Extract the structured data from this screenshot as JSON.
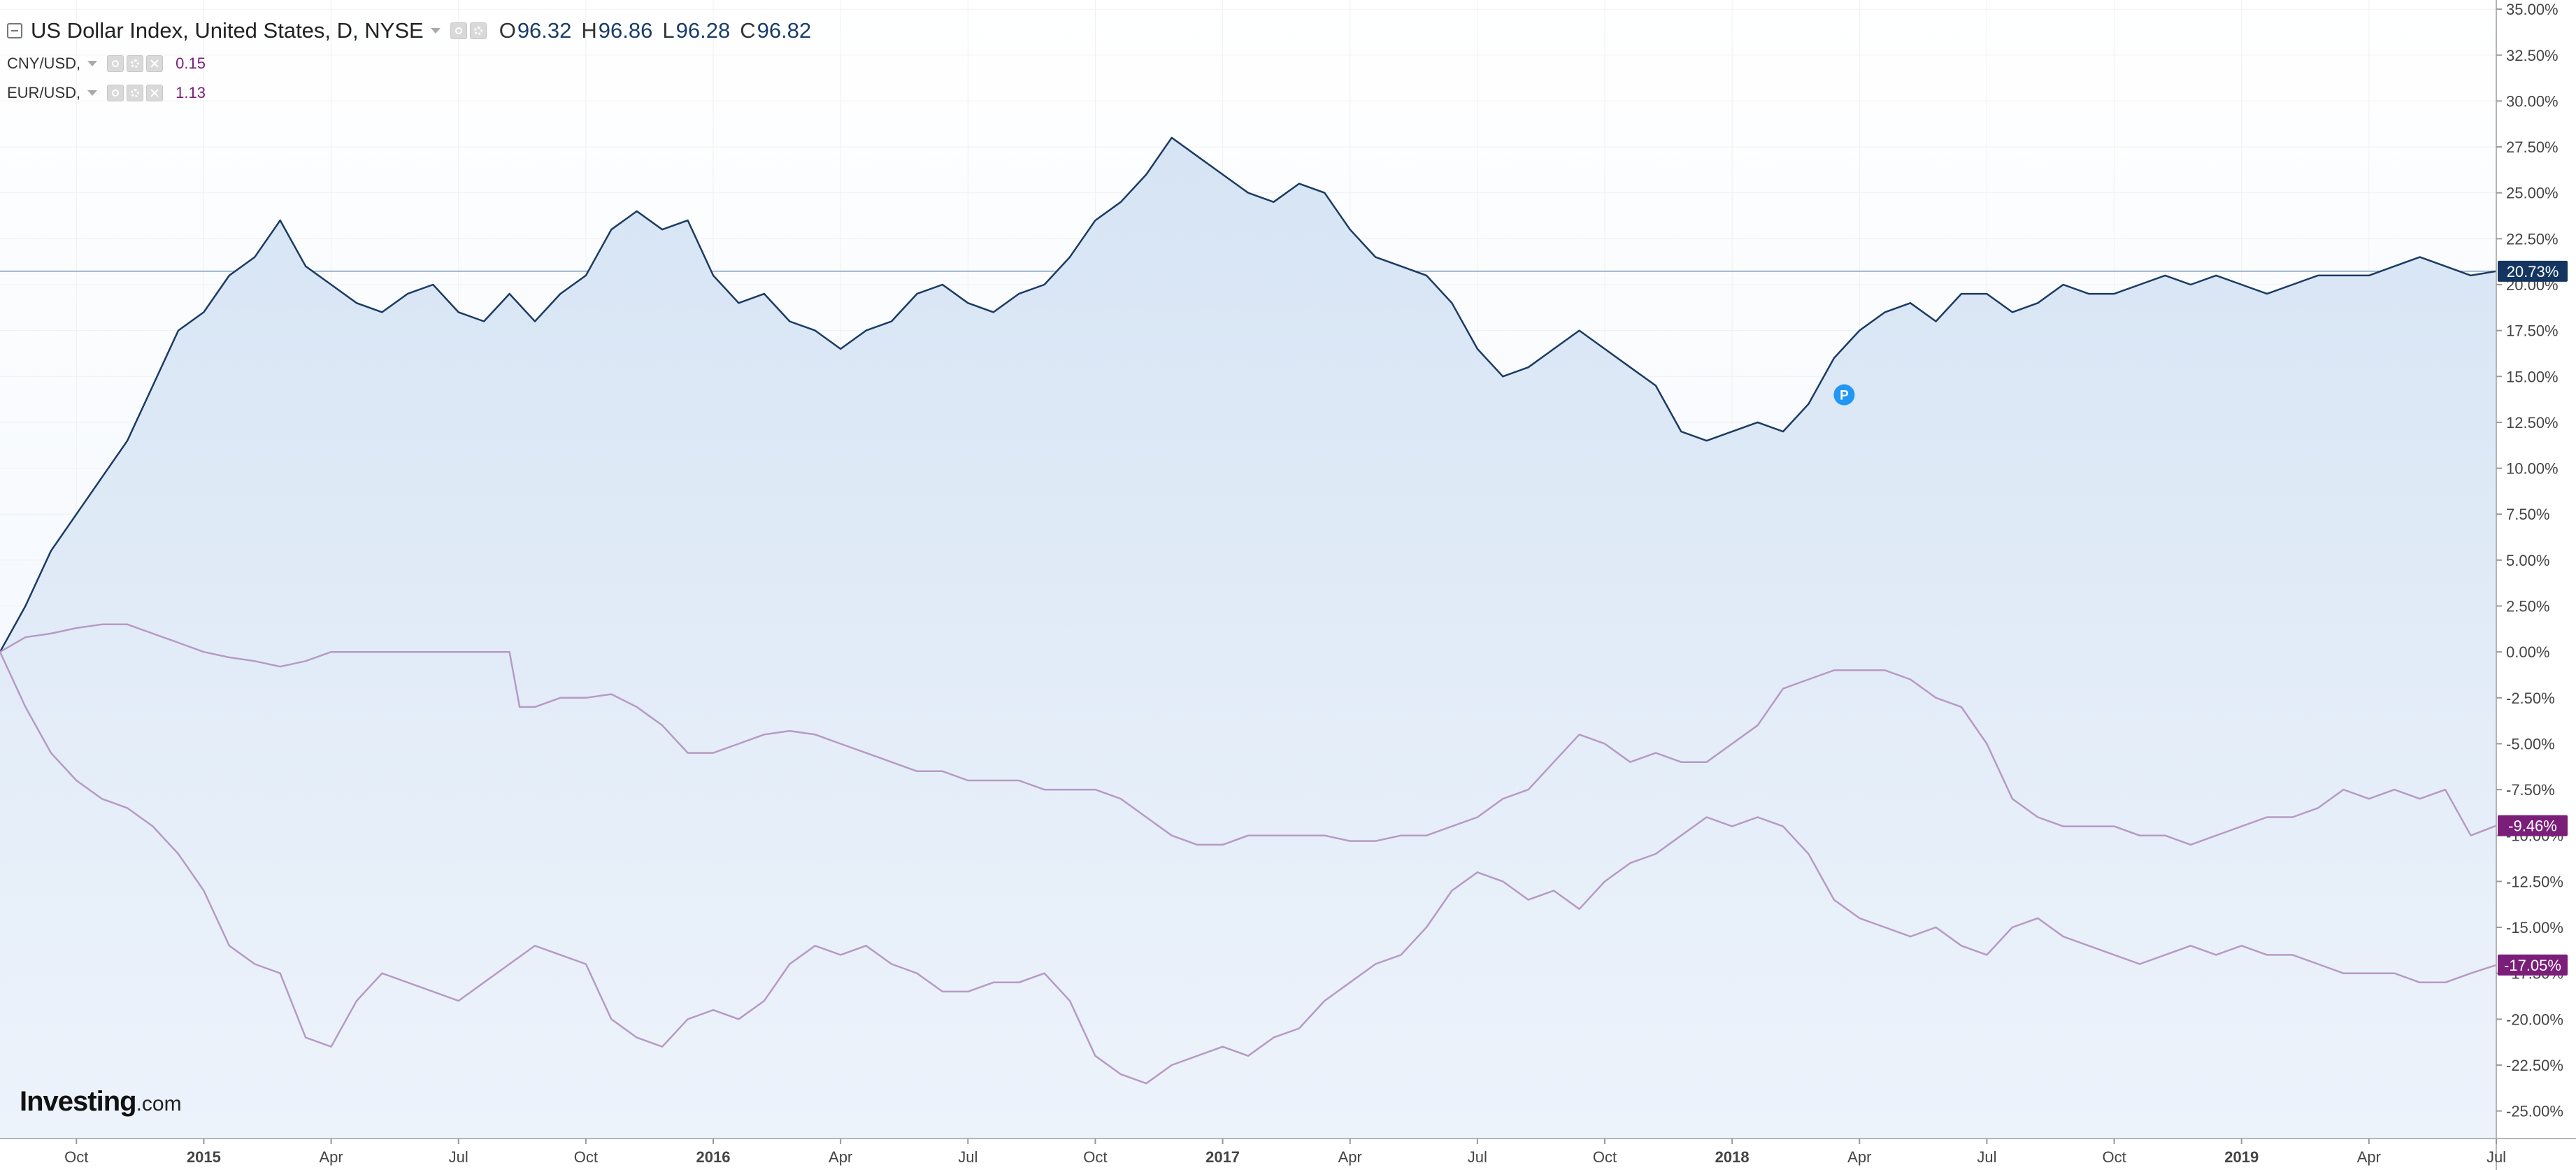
{
  "legend": {
    "main": {
      "title": "US Dollar Index, United States, D, NYSE",
      "ohlc": [
        {
          "key": "O",
          "value": "96.32"
        },
        {
          "key": "H",
          "value": "96.86"
        },
        {
          "key": "L",
          "value": "96.28"
        },
        {
          "key": "C",
          "value": "96.82"
        }
      ]
    },
    "comparisons": [
      {
        "symbol": "CNY/USD,",
        "value": "0.15"
      },
      {
        "symbol": "EUR/USD,",
        "value": "1.13"
      }
    ]
  },
  "brand": {
    "name": "Investing",
    "tld": ".com"
  },
  "colors": {
    "dxy_line": "#1c3b63",
    "dxy_fill": "#dbe8f6",
    "comparison_line": "#b79ac4",
    "price_label": "#133560",
    "comparison_label": "#7b1e7a",
    "grid": "#f0f0f0",
    "marker": "#2196f3"
  },
  "chart_data": {
    "type": "line",
    "y_unit": "percent change",
    "ylim": [
      -26.5,
      35.5
    ],
    "y_ticks": [
      "35.00%",
      "32.50%",
      "30.00%",
      "27.50%",
      "25.00%",
      "22.50%",
      "20.00%",
      "17.50%",
      "15.00%",
      "12.50%",
      "10.00%",
      "7.50%",
      "5.00%",
      "2.50%",
      "0.00%",
      "-2.50%",
      "-5.00%",
      "-7.50%",
      "-10.00%",
      "-12.50%",
      "-15.00%",
      "-17.50%",
      "-20.00%",
      "-22.50%",
      "-25.00%"
    ],
    "x_ticks": [
      {
        "label": "Oct",
        "year": false,
        "month": 2014.75
      },
      {
        "label": "2015",
        "year": true,
        "month": 2015.0
      },
      {
        "label": "Apr",
        "year": false,
        "month": 2015.25
      },
      {
        "label": "Jul",
        "year": false,
        "month": 2015.5
      },
      {
        "label": "Oct",
        "year": false,
        "month": 2015.75
      },
      {
        "label": "2016",
        "year": true,
        "month": 2016.0
      },
      {
        "label": "Apr",
        "year": false,
        "month": 2016.25
      },
      {
        "label": "Jul",
        "year": false,
        "month": 2016.5
      },
      {
        "label": "Oct",
        "year": false,
        "month": 2016.75
      },
      {
        "label": "2017",
        "year": true,
        "month": 2017.0
      },
      {
        "label": "Apr",
        "year": false,
        "month": 2017.25
      },
      {
        "label": "Jul",
        "year": false,
        "month": 2017.5
      },
      {
        "label": "Oct",
        "year": false,
        "month": 2017.75
      },
      {
        "label": "2018",
        "year": true,
        "month": 2018.0
      },
      {
        "label": "Apr",
        "year": false,
        "month": 2018.25
      },
      {
        "label": "Jul",
        "year": false,
        "month": 2018.5
      },
      {
        "label": "Oct",
        "year": false,
        "month": 2018.75
      },
      {
        "label": "2019",
        "year": true,
        "month": 2019.0
      },
      {
        "label": "Apr",
        "year": false,
        "month": 2019.25
      },
      {
        "label": "Jul",
        "year": false,
        "month": 2019.5
      }
    ],
    "xlim": [
      2014.6,
      2019.5
    ],
    "series": [
      {
        "name": "US Dollar Index",
        "end_label": "20.73%",
        "filled": true,
        "x": [
          2014.6,
          2014.65,
          2014.7,
          2014.75,
          2014.8,
          2014.85,
          2014.9,
          2014.95,
          2015.0,
          2015.05,
          2015.1,
          2015.15,
          2015.2,
          2015.25,
          2015.3,
          2015.35,
          2015.4,
          2015.45,
          2015.5,
          2015.55,
          2015.6,
          2015.65,
          2015.7,
          2015.75,
          2015.8,
          2015.85,
          2015.9,
          2015.95,
          2016.0,
          2016.05,
          2016.1,
          2016.15,
          2016.2,
          2016.25,
          2016.3,
          2016.35,
          2016.4,
          2016.45,
          2016.5,
          2016.55,
          2016.6,
          2016.65,
          2016.7,
          2016.75,
          2016.8,
          2016.85,
          2016.9,
          2016.95,
          2017.0,
          2017.05,
          2017.1,
          2017.15,
          2017.2,
          2017.25,
          2017.3,
          2017.35,
          2017.4,
          2017.45,
          2017.5,
          2017.55,
          2017.6,
          2017.65,
          2017.7,
          2017.75,
          2017.8,
          2017.85,
          2017.9,
          2017.95,
          2018.0,
          2018.05,
          2018.1,
          2018.15,
          2018.2,
          2018.25,
          2018.3,
          2018.35,
          2018.4,
          2018.45,
          2018.5,
          2018.55,
          2018.6,
          2018.65,
          2018.7,
          2018.75,
          2018.8,
          2018.85,
          2018.9,
          2018.95,
          2019.0,
          2019.05,
          2019.1,
          2019.15,
          2019.2,
          2019.25,
          2019.3,
          2019.35,
          2019.4,
          2019.45,
          2019.5
        ],
        "y": [
          0.0,
          2.5,
          5.5,
          7.5,
          9.5,
          11.5,
          14.5,
          17.5,
          18.5,
          20.5,
          21.5,
          23.5,
          21.0,
          20.0,
          19.0,
          18.5,
          19.5,
          20.0,
          18.5,
          18.0,
          19.5,
          18.0,
          19.5,
          20.5,
          23.0,
          24.0,
          23.0,
          23.5,
          20.5,
          19.0,
          19.5,
          18.0,
          17.5,
          16.5,
          17.5,
          18.0,
          19.5,
          20.0,
          19.0,
          18.5,
          19.5,
          20.0,
          21.5,
          23.5,
          24.5,
          26.0,
          28.0,
          27.0,
          26.0,
          25.0,
          24.5,
          25.5,
          25.0,
          23.0,
          21.5,
          21.0,
          20.5,
          19.0,
          16.5,
          15.0,
          15.5,
          16.5,
          17.5,
          16.5,
          15.5,
          14.5,
          12.0,
          11.5,
          12.0,
          12.5,
          12.0,
          13.5,
          16.0,
          17.5,
          18.5,
          19.0,
          18.0,
          19.5,
          19.5,
          18.5,
          19.0,
          20.0,
          19.5,
          19.5,
          20.0,
          20.5,
          20.0,
          20.5,
          20.0,
          19.5,
          20.0,
          20.5,
          20.5,
          20.5,
          21.0,
          21.5,
          21.0,
          20.5,
          20.73
        ]
      },
      {
        "name": "CNY/USD",
        "end_label": "-9.46%",
        "filled": false,
        "x": [
          2014.6,
          2014.65,
          2014.7,
          2014.75,
          2014.8,
          2014.85,
          2014.9,
          2014.95,
          2015.0,
          2015.05,
          2015.1,
          2015.15,
          2015.2,
          2015.25,
          2015.3,
          2015.35,
          2015.4,
          2015.45,
          2015.5,
          2015.55,
          2015.6,
          2015.62,
          2015.65,
          2015.7,
          2015.75,
          2015.8,
          2015.85,
          2015.9,
          2015.95,
          2016.0,
          2016.05,
          2016.1,
          2016.15,
          2016.2,
          2016.25,
          2016.3,
          2016.35,
          2016.4,
          2016.45,
          2016.5,
          2016.55,
          2016.6,
          2016.65,
          2016.7,
          2016.75,
          2016.8,
          2016.85,
          2016.9,
          2016.95,
          2017.0,
          2017.05,
          2017.1,
          2017.15,
          2017.2,
          2017.25,
          2017.3,
          2017.35,
          2017.4,
          2017.45,
          2017.5,
          2017.55,
          2017.6,
          2017.65,
          2017.7,
          2017.75,
          2017.8,
          2017.85,
          2017.9,
          2017.95,
          2018.0,
          2018.05,
          2018.1,
          2018.15,
          2018.2,
          2018.25,
          2018.3,
          2018.35,
          2018.4,
          2018.45,
          2018.5,
          2018.55,
          2018.6,
          2018.65,
          2018.7,
          2018.75,
          2018.8,
          2018.85,
          2018.9,
          2018.95,
          2019.0,
          2019.05,
          2019.1,
          2019.15,
          2019.2,
          2019.25,
          2019.3,
          2019.35,
          2019.4,
          2019.45,
          2019.5
        ],
        "y": [
          0.0,
          0.8,
          1.0,
          1.3,
          1.5,
          1.5,
          1.0,
          0.5,
          0.0,
          -0.3,
          -0.5,
          -0.8,
          -0.5,
          0.0,
          0.0,
          0.0,
          0.0,
          0.0,
          0.0,
          0.0,
          0.0,
          -3.0,
          -3.0,
          -2.5,
          -2.5,
          -2.3,
          -3.0,
          -4.0,
          -5.5,
          -5.5,
          -5.0,
          -4.5,
          -4.3,
          -4.5,
          -5.0,
          -5.5,
          -6.0,
          -6.5,
          -6.5,
          -7.0,
          -7.0,
          -7.0,
          -7.5,
          -7.5,
          -7.5,
          -8.0,
          -9.0,
          -10.0,
          -10.5,
          -10.5,
          -10.0,
          -10.0,
          -10.0,
          -10.0,
          -10.3,
          -10.3,
          -10.0,
          -10.0,
          -9.5,
          -9.0,
          -8.0,
          -7.5,
          -6.0,
          -4.5,
          -5.0,
          -6.0,
          -5.5,
          -6.0,
          -6.0,
          -5.0,
          -4.0,
          -2.0,
          -1.5,
          -1.0,
          -1.0,
          -1.0,
          -1.5,
          -2.5,
          -3.0,
          -5.0,
          -8.0,
          -9.0,
          -9.5,
          -9.5,
          -9.5,
          -10.0,
          -10.0,
          -10.5,
          -10.0,
          -9.5,
          -9.0,
          -9.0,
          -8.5,
          -7.5,
          -8.0,
          -7.5,
          -8.0,
          -7.5,
          -10.0,
          -9.46
        ]
      },
      {
        "name": "EUR/USD",
        "end_label": "-17.05%",
        "filled": false,
        "x": [
          2014.6,
          2014.65,
          2014.7,
          2014.75,
          2014.8,
          2014.85,
          2014.9,
          2014.95,
          2015.0,
          2015.05,
          2015.1,
          2015.15,
          2015.2,
          2015.25,
          2015.3,
          2015.35,
          2015.4,
          2015.45,
          2015.5,
          2015.55,
          2015.6,
          2015.65,
          2015.7,
          2015.75,
          2015.8,
          2015.85,
          2015.9,
          2015.95,
          2016.0,
          2016.05,
          2016.1,
          2016.15,
          2016.2,
          2016.25,
          2016.3,
          2016.35,
          2016.4,
          2016.45,
          2016.5,
          2016.55,
          2016.6,
          2016.65,
          2016.7,
          2016.75,
          2016.8,
          2016.85,
          2016.9,
          2016.95,
          2017.0,
          2017.05,
          2017.1,
          2017.15,
          2017.2,
          2017.25,
          2017.3,
          2017.35,
          2017.4,
          2017.45,
          2017.5,
          2017.55,
          2017.6,
          2017.65,
          2017.7,
          2017.75,
          2017.8,
          2017.85,
          2017.9,
          2017.95,
          2018.0,
          2018.05,
          2018.1,
          2018.15,
          2018.2,
          2018.25,
          2018.3,
          2018.35,
          2018.4,
          2018.45,
          2018.5,
          2018.55,
          2018.6,
          2018.65,
          2018.7,
          2018.75,
          2018.8,
          2018.85,
          2018.9,
          2018.95,
          2019.0,
          2019.05,
          2019.1,
          2019.15,
          2019.2,
          2019.25,
          2019.3,
          2019.35,
          2019.4,
          2019.45,
          2019.5
        ],
        "y": [
          0.0,
          -3.0,
          -5.5,
          -7.0,
          -8.0,
          -8.5,
          -9.5,
          -11.0,
          -13.0,
          -16.0,
          -17.0,
          -17.5,
          -21.0,
          -21.5,
          -19.0,
          -17.5,
          -18.0,
          -18.5,
          -19.0,
          -18.0,
          -17.0,
          -16.0,
          -16.5,
          -17.0,
          -20.0,
          -21.0,
          -21.5,
          -20.0,
          -19.5,
          -20.0,
          -19.0,
          -17.0,
          -16.0,
          -16.5,
          -16.0,
          -17.0,
          -17.5,
          -18.5,
          -18.5,
          -18.0,
          -18.0,
          -17.5,
          -19.0,
          -22.0,
          -23.0,
          -23.5,
          -22.5,
          -22.0,
          -21.5,
          -22.0,
          -21.0,
          -20.5,
          -19.0,
          -18.0,
          -17.0,
          -16.5,
          -15.0,
          -13.0,
          -12.0,
          -12.5,
          -13.5,
          -13.0,
          -14.0,
          -12.5,
          -11.5,
          -11.0,
          -10.0,
          -9.0,
          -9.5,
          -9.0,
          -9.5,
          -11.0,
          -13.5,
          -14.5,
          -15.0,
          -15.5,
          -15.0,
          -16.0,
          -16.5,
          -15.0,
          -14.5,
          -15.5,
          -16.0,
          -16.5,
          -17.0,
          -16.5,
          -16.0,
          -16.5,
          -16.0,
          -16.5,
          -16.5,
          -17.0,
          -17.5,
          -17.5,
          -17.5,
          -18.0,
          -18.0,
          -17.5,
          -17.05
        ]
      }
    ],
    "annotations": [
      {
        "type": "marker",
        "text": "P",
        "x": 2018.22,
        "y": 14.0
      }
    ],
    "current_price_line_y": 20.73,
    "grid": true,
    "legend_position": "top-left"
  }
}
